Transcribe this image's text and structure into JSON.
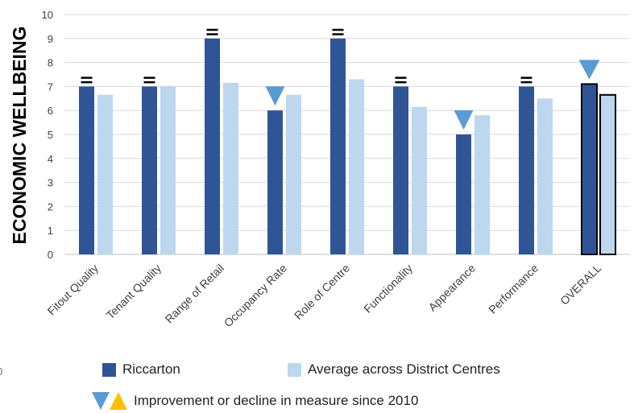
{
  "chart_data": {
    "type": "bar",
    "ylabel": "ECONOMIC WELLBEING",
    "ylim": [
      0,
      10
    ],
    "yticks": [
      0,
      1,
      2,
      3,
      4,
      5,
      6,
      7,
      8,
      9,
      10
    ],
    "grid": true,
    "categories": [
      "Fitout Quality",
      "Tenant Quality",
      "Range of Retail",
      "Occupancy Rate",
      "Role of Centre",
      "Functionality",
      "Appearance",
      "Performance",
      "OVERALL"
    ],
    "series": [
      {
        "name": "Riccarton",
        "color": "#2f5597",
        "values": [
          7,
          7,
          9,
          6,
          9,
          7,
          5,
          7,
          7.1
        ]
      },
      {
        "name": "Average across District Centres",
        "color": "#bdd7ee",
        "values": [
          6.65,
          7,
          7.15,
          6.65,
          7.3,
          6.15,
          5.8,
          6.5,
          6.65
        ]
      }
    ],
    "markers": [
      "=",
      "=",
      "=",
      "decline",
      "=",
      "=",
      "decline",
      "=",
      "decline"
    ],
    "marker_colors": {
      "decline": "#5b9bd5",
      "improvement": "#ffc000",
      "equal": "#000000"
    },
    "highlighted_category": "OVERALL"
  },
  "legend": {
    "series1": "Riccarton",
    "series2": "Average across District Centres",
    "change_note": "Improvement or decline in measure since 2010"
  },
  "stray_text": "0"
}
